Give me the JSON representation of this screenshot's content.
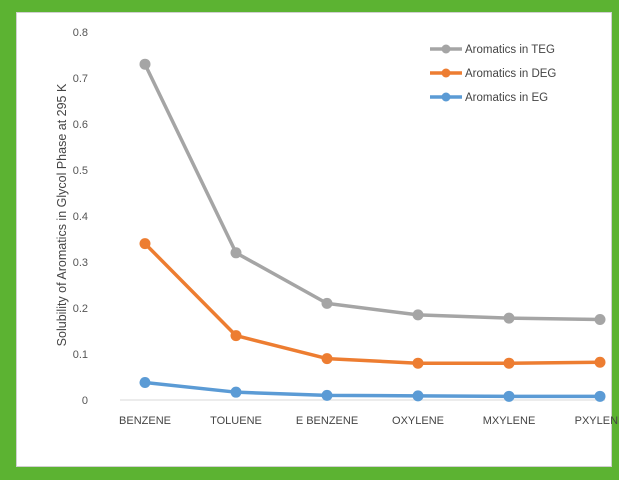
{
  "chart_data": {
    "type": "line",
    "title": "",
    "xlabel": "",
    "ylabel": "Solubility of Aromatics in Glycol Phase at 295 K",
    "categories": [
      "BENZENE",
      "TOLUENE",
      "E BENZENE",
      "OXYLENE",
      "MXYLENE",
      "PXYLENE"
    ],
    "ylim": [
      0,
      0.8
    ],
    "yticks": [
      "0",
      "0.1",
      "0.2",
      "0.3",
      "0.4",
      "0.5",
      "0.6",
      "0.7",
      "0.8"
    ],
    "grid": false,
    "legend_position": "top-right",
    "series": [
      {
        "name": "Aromatics in TEG",
        "color": "#a5a5a5",
        "values": [
          0.73,
          0.32,
          0.21,
          0.185,
          0.178,
          0.175
        ]
      },
      {
        "name": "Aromatics in DEG",
        "color": "#ed7d31",
        "values": [
          0.34,
          0.14,
          0.09,
          0.08,
          0.08,
          0.082
        ]
      },
      {
        "name": "Aromatics in EG",
        "color": "#5b9bd5",
        "values": [
          0.038,
          0.017,
          0.01,
          0.009,
          0.008,
          0.008
        ]
      }
    ]
  }
}
